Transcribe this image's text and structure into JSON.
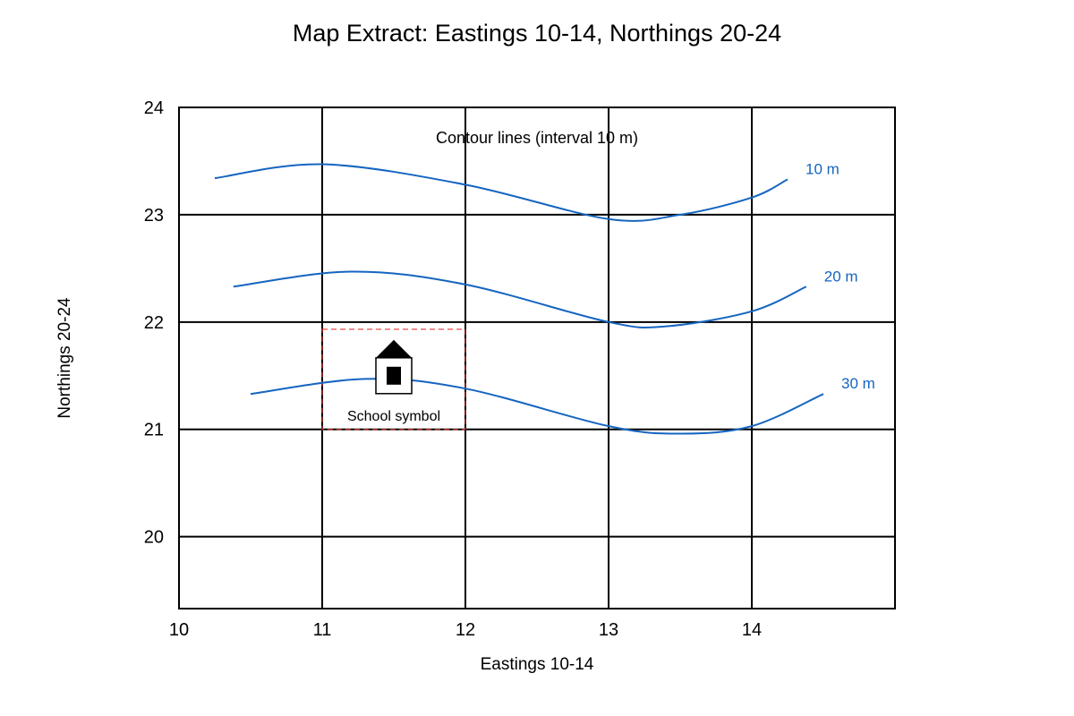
{
  "title": "Map Extract: Eastings 10-14, Northings 20-24",
  "x_axis_label": "Eastings 10-14",
  "y_axis_label": "Northings 20-24",
  "eastings": {
    "range": [
      10,
      15
    ],
    "tick_values": [
      10,
      11,
      12,
      13,
      14
    ],
    "tick_labels": [
      "10",
      "11",
      "12",
      "13",
      "14"
    ]
  },
  "northings": {
    "range": [
      19.33,
      24
    ],
    "tick_values": [
      20,
      21,
      22,
      23,
      24
    ],
    "tick_labels": [
      "20",
      "21",
      "22",
      "23",
      "24"
    ]
  },
  "grid": true,
  "contour_annotation": "Contour lines (interval 10 m)",
  "contours": [
    {
      "label": "10 m",
      "color": "#1565c0",
      "points": [
        [
          10.25,
          23.34
        ],
        [
          11.0,
          23.47
        ],
        [
          12.0,
          23.28
        ],
        [
          13.0,
          22.96
        ],
        [
          13.5,
          23.0
        ],
        [
          14.0,
          23.16
        ],
        [
          14.25,
          23.33
        ]
      ]
    },
    {
      "label": "20 m",
      "color": "#1565c0",
      "points": [
        [
          10.38,
          22.33
        ],
        [
          11.2,
          22.47
        ],
        [
          12.0,
          22.35
        ],
        [
          13.0,
          22.0
        ],
        [
          13.4,
          21.96
        ],
        [
          14.0,
          22.1
        ],
        [
          14.38,
          22.33
        ]
      ]
    },
    {
      "label": "30 m",
      "color": "#1565c0",
      "points": [
        [
          10.5,
          21.33
        ],
        [
          11.3,
          21.47
        ],
        [
          12.0,
          21.38
        ],
        [
          13.0,
          21.03
        ],
        [
          13.5,
          20.96
        ],
        [
          14.0,
          21.03
        ],
        [
          14.5,
          21.33
        ]
      ]
    }
  ],
  "school": {
    "label": "School symbol",
    "square_easting": 11,
    "square_northing": 21,
    "easting": 11.5,
    "northing": 21.5,
    "highlight_color": "#e53935",
    "icon": "school-building-icon"
  }
}
